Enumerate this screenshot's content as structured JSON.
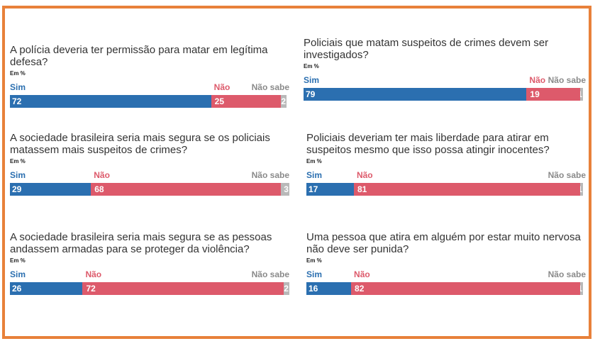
{
  "colors": {
    "sim": "#2b6fb0",
    "nao": "#dd5a6b",
    "nao_sabe": "#b9b9b9",
    "border": "#e8813a"
  },
  "chart_data": [
    {
      "type": "bar",
      "question": "A polícia deveria ter permissão para matar em legítima defesa?",
      "unit": "Em %",
      "categories": [
        "Sim",
        "Não",
        "Não sabe"
      ],
      "values": [
        72,
        25,
        2
      ],
      "xlim": [
        0,
        100
      ]
    },
    {
      "type": "bar",
      "question": "Policiais que matam suspeitos de crimes devem ser investigados?",
      "unit": "Em %",
      "categories": [
        "Sim",
        "Não",
        "Não sabe"
      ],
      "values": [
        79,
        19,
        1
      ],
      "xlim": [
        0,
        100
      ]
    },
    {
      "type": "bar",
      "question": "A sociedade brasileira seria mais segura se os policiais matassem mais suspeitos de crimes?",
      "unit": "Em %",
      "categories": [
        "Sim",
        "Não",
        "Não sabe"
      ],
      "values": [
        29,
        68,
        3
      ],
      "xlim": [
        0,
        100
      ]
    },
    {
      "type": "bar",
      "question": "Policiais deveriam ter mais liberdade para atirar em suspeitos mesmo que isso possa atingir inocentes?",
      "unit": "Em %",
      "categories": [
        "Sim",
        "Não",
        "Não sabe"
      ],
      "values": [
        17,
        81,
        1
      ],
      "xlim": [
        0,
        100
      ]
    },
    {
      "type": "bar",
      "question": "A sociedade brasileira seria mais segura se as pessoas andassem armadas para se proteger da violência?",
      "unit": "Em %",
      "categories": [
        "Sim",
        "Não",
        "Não sabe"
      ],
      "values": [
        26,
        72,
        2
      ],
      "xlim": [
        0,
        100
      ]
    },
    {
      "type": "bar",
      "question": "Uma pessoa que atira em alguém por estar muito nervosa não deve ser punida?",
      "unit": "Em %",
      "categories": [
        "Sim",
        "Não",
        "Não sabe"
      ],
      "values": [
        16,
        82,
        1
      ],
      "xlim": [
        0,
        100
      ]
    }
  ]
}
